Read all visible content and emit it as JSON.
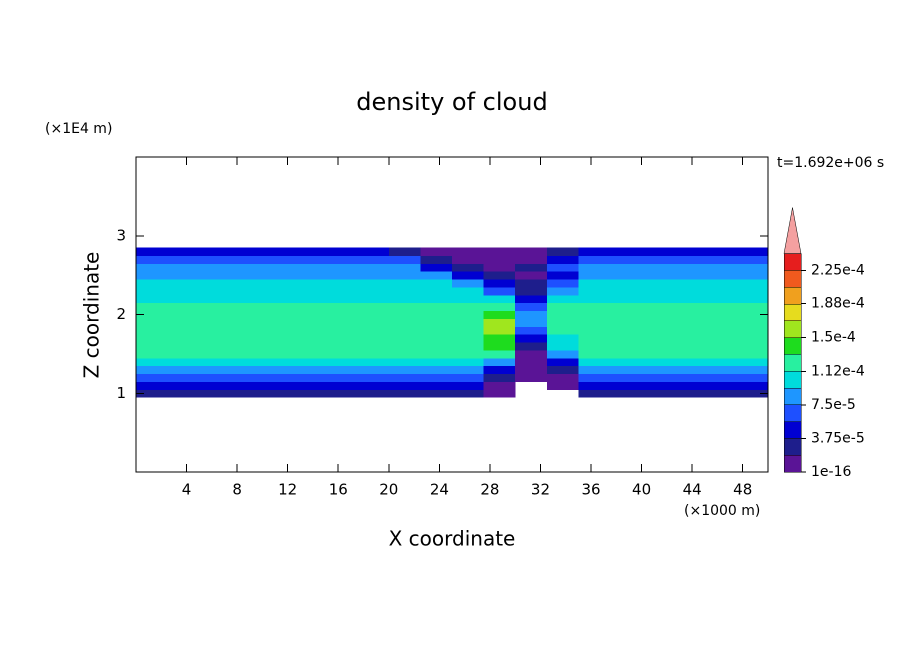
{
  "chart_data": {
    "type": "contour",
    "title": "density of cloud",
    "x_label": "X coordinate",
    "x_unit": "(×1000 m)",
    "y_label": "Z coordinate",
    "y_unit": "(×1E4 m)",
    "time_label": "t=1.692e+06 s",
    "xlim": [
      0,
      50
    ],
    "ylim": [
      0,
      4
    ],
    "xticks": [
      4,
      8,
      12,
      16,
      20,
      24,
      28,
      32,
      36,
      40,
      44,
      48
    ],
    "yticks": [
      1,
      2,
      3
    ],
    "x": [
      1.25,
      3.75,
      6.25,
      8.75,
      11.25,
      13.75,
      16.25,
      18.75,
      21.25,
      23.75,
      26.25,
      28.75,
      31.25,
      33.75,
      36.25,
      38.75,
      41.25,
      43.75,
      46.25,
      48.75
    ],
    "y": [
      1,
      1.1,
      1.2,
      1.3,
      1.4,
      1.5,
      1.6,
      1.7,
      1.8,
      1.9,
      2,
      2.1,
      2.2,
      2.3,
      2.4,
      2.5,
      2.6,
      2.7,
      2.8
    ],
    "values": [
      [
        3e-05,
        3e-05,
        3e-05,
        3e-05,
        3e-05,
        3e-05,
        3e-05,
        3e-05,
        3e-05,
        3e-05,
        3e-05,
        1e-05,
        null,
        null,
        3e-05,
        3e-05,
        3e-05,
        3e-05,
        3e-05,
        3e-05
      ],
      [
        5e-05,
        5e-05,
        5e-05,
        5e-05,
        5e-05,
        5e-05,
        5e-05,
        5e-05,
        5e-05,
        5e-05,
        5e-05,
        1e-05,
        null,
        1e-05,
        5e-05,
        5e-05,
        5e-05,
        5e-05,
        5e-05,
        5e-05
      ],
      [
        6.5e-05,
        6.5e-05,
        6.5e-05,
        6.5e-05,
        6.5e-05,
        6.5e-05,
        6.5e-05,
        6.5e-05,
        6.5e-05,
        6.5e-05,
        6.5e-05,
        3e-05,
        1e-05,
        1e-05,
        6.5e-05,
        6.5e-05,
        6.5e-05,
        6.5e-05,
        6.5e-05,
        6.5e-05
      ],
      [
        8.5e-05,
        8.5e-05,
        8.5e-05,
        8.5e-05,
        8.5e-05,
        8.5e-05,
        8.5e-05,
        8.5e-05,
        8.5e-05,
        8.5e-05,
        8.5e-05,
        5e-05,
        1e-05,
        3e-05,
        8.5e-05,
        8.5e-05,
        8.5e-05,
        8.5e-05,
        8.5e-05,
        8.5e-05
      ],
      [
        0.0001,
        0.0001,
        0.0001,
        0.0001,
        0.0001,
        0.0001,
        0.0001,
        0.0001,
        0.0001,
        0.0001,
        0.0001,
        8.5e-05,
        1e-05,
        5e-05,
        0.0001,
        0.0001,
        0.0001,
        0.0001,
        0.0001,
        0.0001
      ],
      [
        0.00012,
        0.00012,
        0.00012,
        0.00012,
        0.00012,
        0.00012,
        0.00012,
        0.00012,
        0.00012,
        0.00012,
        0.00012,
        0.00012,
        1e-05,
        8.5e-05,
        0.00012,
        0.00012,
        0.00012,
        0.00012,
        0.00012,
        0.00012
      ],
      [
        0.00012,
        0.00012,
        0.00012,
        0.00012,
        0.00012,
        0.00012,
        0.00012,
        0.00012,
        0.00012,
        0.00012,
        0.00012,
        0.00014,
        3e-05,
        0.0001,
        0.00012,
        0.00012,
        0.00012,
        0.00012,
        0.00012,
        0.00012
      ],
      [
        0.00013,
        0.00013,
        0.00013,
        0.00013,
        0.00013,
        0.00013,
        0.00013,
        0.00013,
        0.00013,
        0.00013,
        0.00013,
        0.00014,
        5e-05,
        0.0001,
        0.00013,
        0.00013,
        0.00013,
        0.00013,
        0.00013,
        0.00013
      ],
      [
        0.00013,
        0.00013,
        0.00013,
        0.00013,
        0.00013,
        0.00013,
        0.00013,
        0.00013,
        0.00013,
        0.00013,
        0.00013,
        0.00016,
        6.5e-05,
        0.00013,
        0.00013,
        0.00013,
        0.00013,
        0.00013,
        0.00013,
        0.00013
      ],
      [
        0.00012,
        0.00012,
        0.00012,
        0.00012,
        0.00012,
        0.00012,
        0.00012,
        0.00012,
        0.00012,
        0.00012,
        0.00012,
        0.00016,
        8.5e-05,
        0.00012,
        0.00012,
        0.00012,
        0.00012,
        0.00012,
        0.00012,
        0.00012
      ],
      [
        0.00012,
        0.00012,
        0.00012,
        0.00012,
        0.00012,
        0.00012,
        0.00012,
        0.00012,
        0.00012,
        0.00012,
        0.00012,
        0.00014,
        8.5e-05,
        0.00012,
        0.00012,
        0.00012,
        0.00012,
        0.00012,
        0.00012,
        0.00012
      ],
      [
        0.00012,
        0.00012,
        0.00012,
        0.00012,
        0.00012,
        0.00012,
        0.00012,
        0.00012,
        0.00012,
        0.00012,
        0.00012,
        0.00012,
        6.5e-05,
        0.00012,
        0.00012,
        0.00012,
        0.00012,
        0.00012,
        0.00012,
        0.00012
      ],
      [
        0.0001,
        0.0001,
        0.0001,
        0.0001,
        0.0001,
        0.0001,
        0.0001,
        0.0001,
        0.0001,
        0.0001,
        0.0001,
        0.0001,
        5e-05,
        0.0001,
        0.0001,
        0.0001,
        0.0001,
        0.0001,
        0.0001,
        0.0001
      ],
      [
        0.0001,
        0.0001,
        0.0001,
        0.0001,
        0.0001,
        0.0001,
        0.0001,
        0.0001,
        0.0001,
        0.0001,
        0.0001,
        6.5e-05,
        3e-05,
        8.5e-05,
        0.0001,
        0.0001,
        0.0001,
        0.0001,
        0.0001,
        0.0001
      ],
      [
        0.0001,
        0.0001,
        0.0001,
        0.0001,
        0.0001,
        0.0001,
        0.0001,
        0.0001,
        0.0001,
        0.0001,
        8.5e-05,
        5e-05,
        3e-05,
        6.5e-05,
        0.0001,
        0.0001,
        0.0001,
        0.0001,
        0.0001,
        0.0001
      ],
      [
        8.5e-05,
        8.5e-05,
        8.5e-05,
        8.5e-05,
        8.5e-05,
        8.5e-05,
        8.5e-05,
        8.5e-05,
        8.5e-05,
        8.5e-05,
        5e-05,
        3e-05,
        1e-05,
        5e-05,
        8.5e-05,
        8.5e-05,
        8.5e-05,
        8.5e-05,
        8.5e-05,
        8.5e-05
      ],
      [
        8.5e-05,
        8.5e-05,
        8.5e-05,
        8.5e-05,
        8.5e-05,
        8.5e-05,
        8.5e-05,
        8.5e-05,
        8.5e-05,
        5e-05,
        3e-05,
        1e-05,
        3e-05,
        6.5e-05,
        8.5e-05,
        8.5e-05,
        8.5e-05,
        8.5e-05,
        8.5e-05,
        8.5e-05
      ],
      [
        6.5e-05,
        6.5e-05,
        6.5e-05,
        6.5e-05,
        6.5e-05,
        6.5e-05,
        6.5e-05,
        6.5e-05,
        6.5e-05,
        3e-05,
        1e-05,
        1e-05,
        1e-05,
        5e-05,
        6.5e-05,
        6.5e-05,
        6.5e-05,
        6.5e-05,
        6.5e-05,
        6.5e-05
      ],
      [
        5e-05,
        5e-05,
        5e-05,
        5e-05,
        5e-05,
        5e-05,
        5e-05,
        5e-05,
        3e-05,
        1e-05,
        1e-05,
        1e-05,
        1e-05,
        3e-05,
        5e-05,
        5e-05,
        5e-05,
        5e-05,
        5e-05,
        5e-05
      ]
    ],
    "colorbar": {
      "levels": [
        1e-16,
        1.875e-05,
        3.75e-05,
        5.625e-05,
        7.5e-05,
        9.375e-05,
        0.0001125,
        0.00013125,
        0.00015,
        0.00016875,
        0.0001875,
        0.00020625,
        0.000225
      ],
      "colors": [
        "#5a1496",
        "#1e1e8c",
        "#0000d2",
        "#1e50ff",
        "#1e96ff",
        "#00dcdc",
        "#28f0a0",
        "#1edc1e",
        "#a0e61e",
        "#e6dc1e",
        "#f0a01e",
        "#f05a1e",
        "#e61e1e"
      ],
      "over_color": "#f4a0a0",
      "ticks": [
        {
          "value": 1e-16,
          "label": "1e-16"
        },
        {
          "value": 3.75e-05,
          "label": "3.75e-5"
        },
        {
          "value": 7.5e-05,
          "label": "7.5e-5"
        },
        {
          "value": 0.000112,
          "label": "1.12e-4"
        },
        {
          "value": 0.00015,
          "label": "1.5e-4"
        },
        {
          "value": 0.000188,
          "label": "1.88e-4"
        },
        {
          "value": 0.000225,
          "label": "2.25e-4"
        }
      ]
    }
  }
}
